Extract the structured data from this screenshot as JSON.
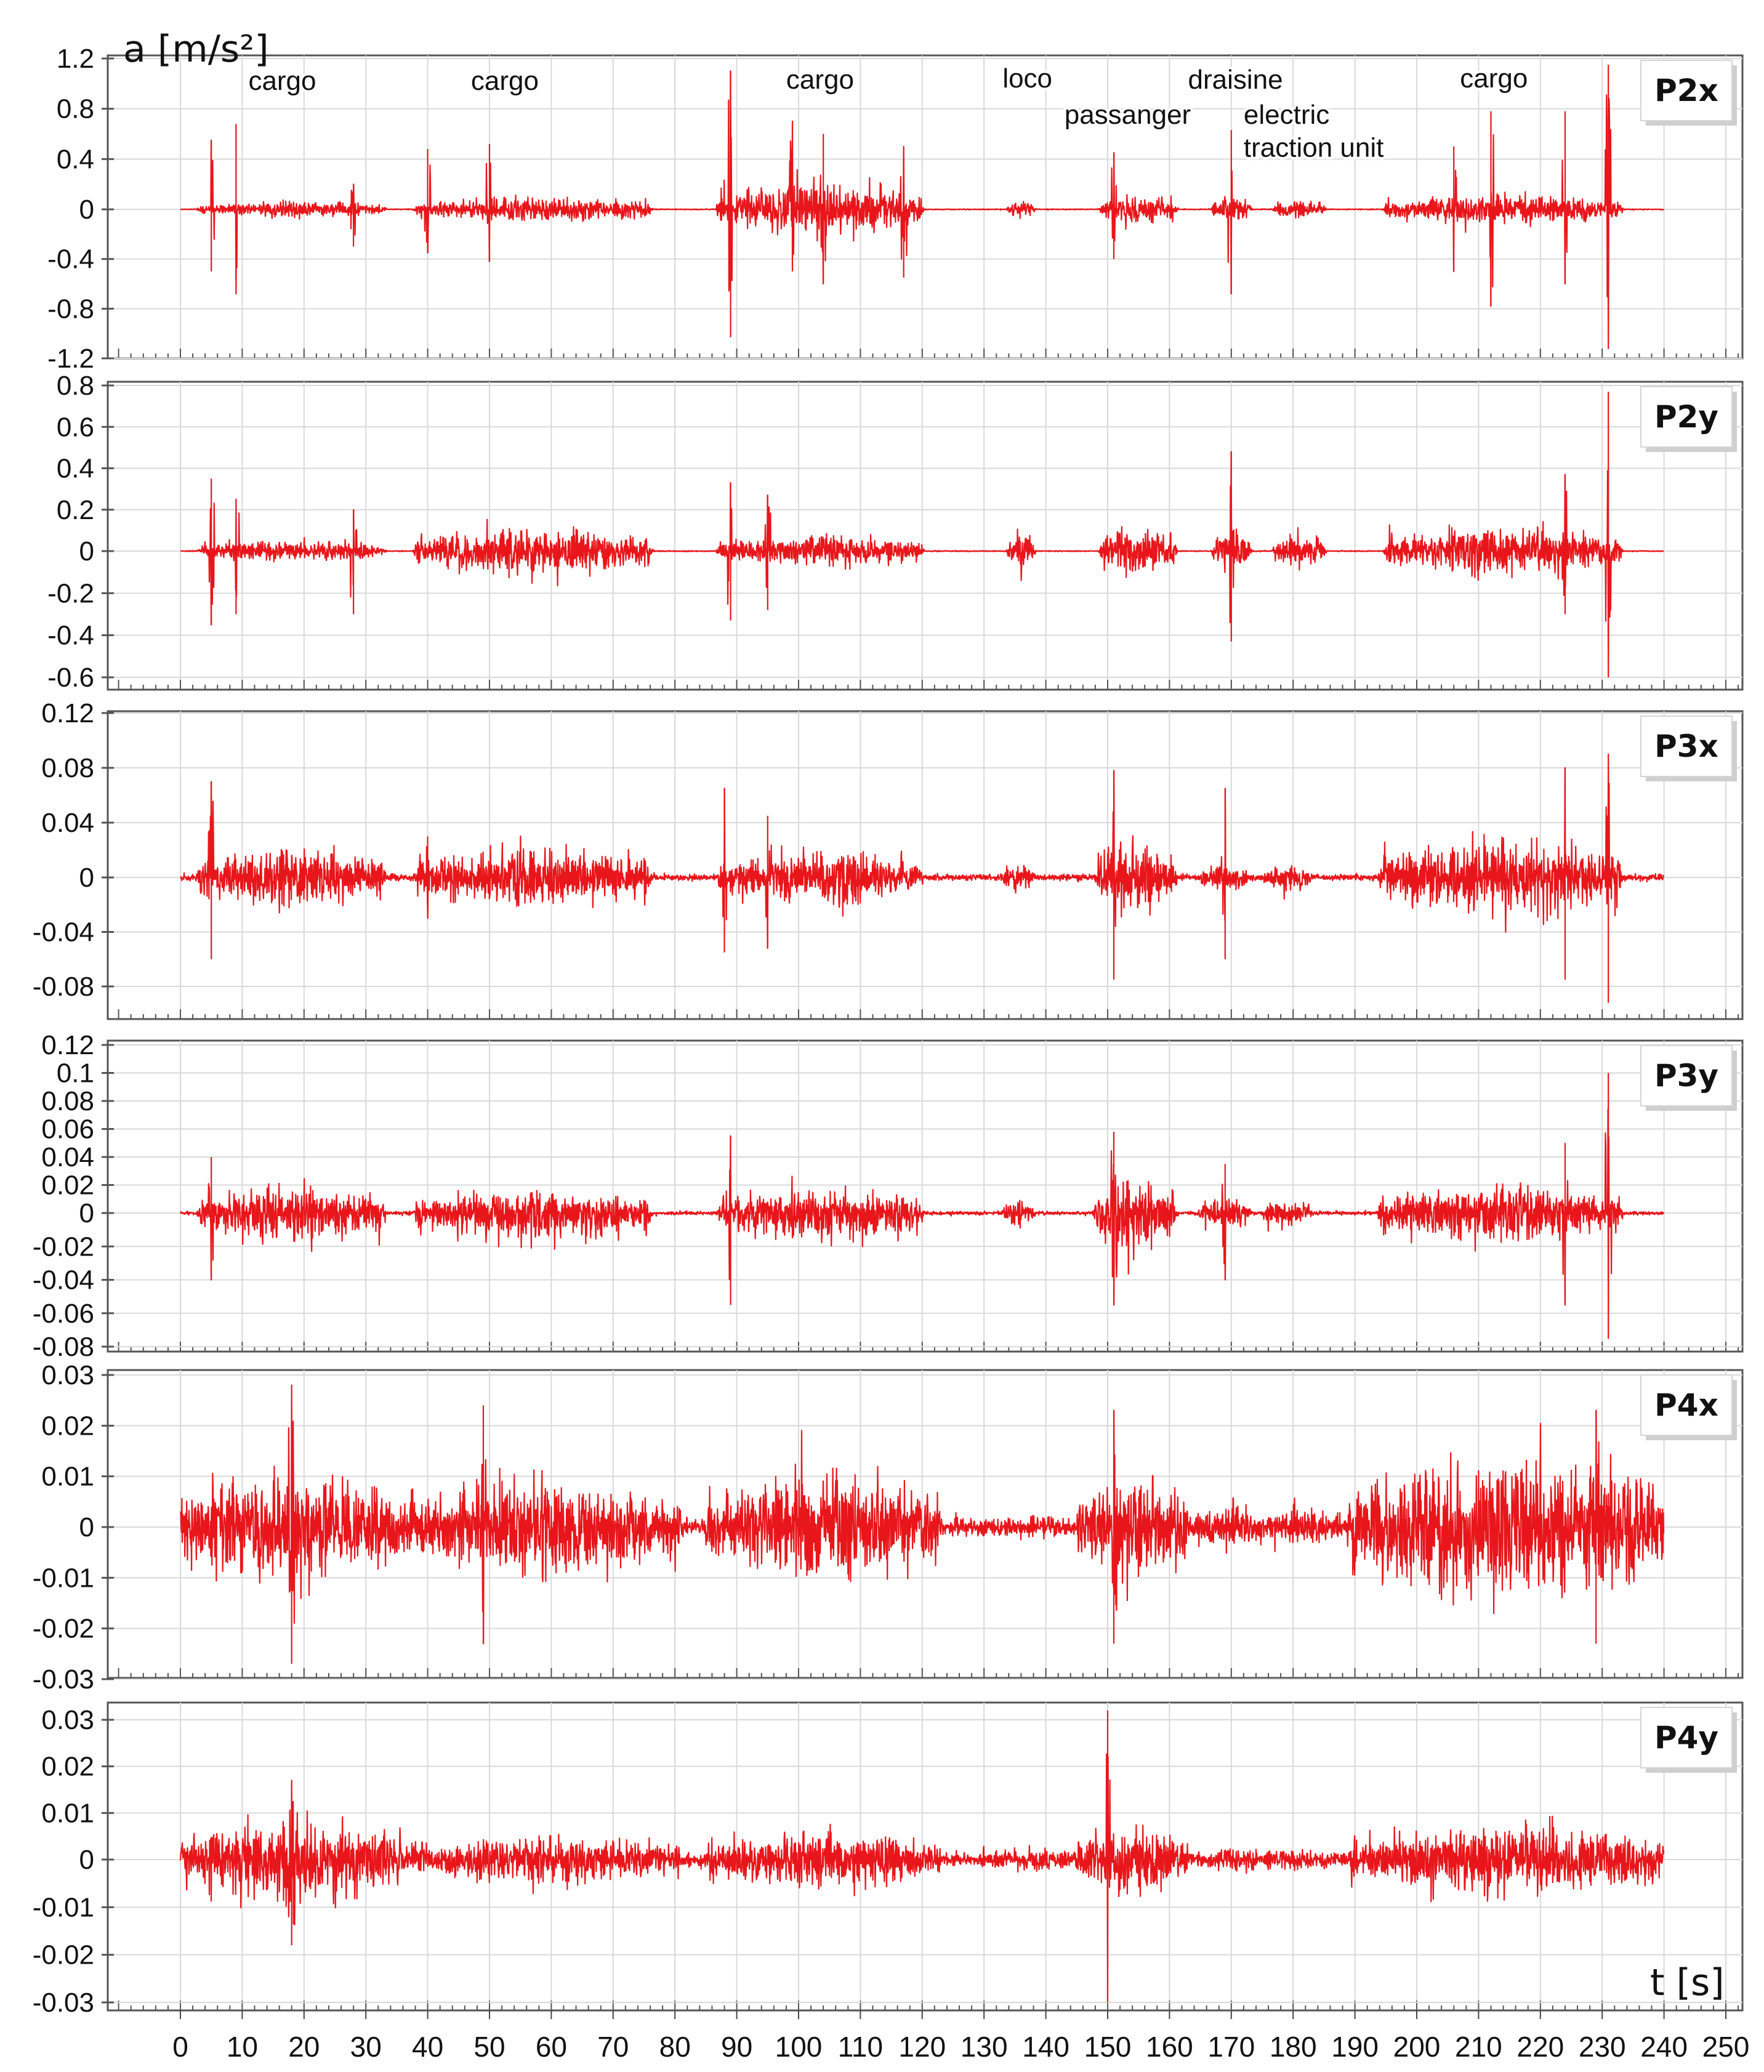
{
  "chart_data": {
    "type": "line",
    "y_axis_label": "a [m/s²]",
    "x_axis_label": "t [s]",
    "x_ticks": [
      0,
      10,
      20,
      30,
      40,
      50,
      60,
      70,
      80,
      90,
      100,
      110,
      120,
      130,
      140,
      150,
      160,
      170,
      180,
      190,
      200,
      210,
      220,
      230,
      240,
      250
    ],
    "xlim": [
      0,
      250
    ],
    "grid": true,
    "colors": {
      "series": "#e8161b",
      "grid": "#d9d9d9",
      "frame": "#555555"
    },
    "events": [
      {
        "label": "cargo",
        "start": 4,
        "end": 32
      },
      {
        "label": "cargo",
        "start": 39,
        "end": 75
      },
      {
        "label": "cargo",
        "start": 88,
        "end": 119
      },
      {
        "label": "loco",
        "start": 135,
        "end": 137
      },
      {
        "label": "passanger",
        "start": 151,
        "end": 160
      },
      {
        "label": "draisine",
        "start": 168,
        "end": 172
      },
      {
        "label": "electric",
        "start": 178,
        "end": 184
      },
      {
        "label": "traction unit",
        "start": 178,
        "end": 184
      },
      {
        "label": "cargo",
        "start": 196,
        "end": 232
      }
    ],
    "panels": [
      {
        "name": "P2x",
        "ylim": [
          -1.2,
          1.2
        ],
        "y_ticks": [
          1.2,
          0.8,
          0.4,
          0,
          -0.4,
          -0.8,
          -1.2
        ],
        "y_tick_labels": [
          "1.2",
          "0.8",
          "0.4",
          "0",
          "-0.4",
          "-0.8",
          "-1.2"
        ],
        "baseline": 0.003,
        "segments": [
          [
            4,
            32,
            0.05
          ],
          [
            39,
            75,
            0.08
          ],
          [
            88,
            119,
            0.17
          ],
          [
            135,
            137,
            0.07
          ],
          [
            150,
            160,
            0.1
          ],
          [
            168,
            172,
            0.1
          ],
          [
            178,
            184,
            0.06
          ],
          [
            196,
            232,
            0.1
          ]
        ],
        "peaks": [
          [
            5,
            0.55,
            -0.5
          ],
          [
            9,
            0.68,
            -0.68
          ],
          [
            28,
            0.2,
            -0.3
          ],
          [
            40,
            0.48,
            -0.35
          ],
          [
            50,
            0.52,
            -0.42
          ],
          [
            89,
            1.1,
            -1.03
          ],
          [
            99,
            0.7,
            -0.5
          ],
          [
            104,
            0.6,
            -0.6
          ],
          [
            117,
            0.5,
            -0.55
          ],
          [
            151,
            0.45,
            -0.4
          ],
          [
            170,
            0.63,
            -0.68
          ],
          [
            206,
            0.5,
            -0.5
          ],
          [
            212,
            0.78,
            -0.78
          ],
          [
            224,
            0.78,
            -0.6
          ],
          [
            231,
            1.15,
            -1.12
          ]
        ],
        "annotations": [
          {
            "text": "cargo",
            "x": 11,
            "y": 0.95
          },
          {
            "text": "cargo",
            "x": 47,
            "y": 0.95
          },
          {
            "text": "cargo",
            "x": 98,
            "y": 0.96
          },
          {
            "text": "loco",
            "x": 133,
            "y": 0.97
          },
          {
            "text": "draisine",
            "x": 163,
            "y": 0.96
          },
          {
            "text": "passanger",
            "x": 143,
            "y": 0.68
          },
          {
            "text": "electric",
            "x": 172,
            "y": 0.68
          },
          {
            "text": "traction unit",
            "x": 172,
            "y": 0.42
          },
          {
            "text": "cargo",
            "x": 207,
            "y": 0.97
          }
        ]
      },
      {
        "name": "P2y",
        "ylim": [
          -0.62,
          0.82
        ],
        "y_ticks": [
          0.8,
          0.6,
          0.4,
          0.2,
          0,
          -0.2,
          -0.4,
          -0.6
        ],
        "y_tick_labels": [
          "0.8",
          "0.6",
          "0.4",
          "0.2",
          "0",
          "-0.2",
          "-0.4",
          "-0.6"
        ],
        "baseline": 0.002,
        "segments": [
          [
            4,
            32,
            0.04
          ],
          [
            39,
            75,
            0.09
          ],
          [
            88,
            119,
            0.06
          ],
          [
            135,
            137,
            0.1
          ],
          [
            150,
            160,
            0.1
          ],
          [
            168,
            172,
            0.1
          ],
          [
            178,
            184,
            0.07
          ],
          [
            196,
            232,
            0.09
          ]
        ],
        "peaks": [
          [
            5,
            0.35,
            -0.35
          ],
          [
            9,
            0.25,
            -0.3
          ],
          [
            28,
            0.2,
            -0.3
          ],
          [
            89,
            0.33,
            -0.33
          ],
          [
            95,
            0.27,
            -0.28
          ],
          [
            170,
            0.48,
            -0.43
          ],
          [
            224,
            0.37,
            -0.3
          ],
          [
            231,
            0.77,
            -0.6
          ]
        ],
        "annotations": []
      },
      {
        "name": "P3x",
        "ylim": [
          -0.105,
          0.12
        ],
        "y_ticks": [
          0.12,
          0.08,
          0.04,
          0,
          -0.04,
          -0.08
        ],
        "y_tick_labels": [
          "0.12",
          "0.08",
          "0.04",
          "0",
          "-0.04",
          "-0.08"
        ],
        "baseline": 0.002,
        "segments": [
          [
            4,
            32,
            0.018
          ],
          [
            39,
            75,
            0.018
          ],
          [
            88,
            119,
            0.016
          ],
          [
            134,
            137,
            0.01
          ],
          [
            149,
            160,
            0.02
          ],
          [
            166,
            172,
            0.01
          ],
          [
            176,
            182,
            0.008
          ],
          [
            195,
            232,
            0.022
          ]
        ],
        "peaks": [
          [
            5,
            0.07,
            -0.06
          ],
          [
            40,
            0.03,
            -0.03
          ],
          [
            88,
            0.065,
            -0.055
          ],
          [
            95,
            0.045,
            -0.052
          ],
          [
            151,
            0.078,
            -0.075
          ],
          [
            169,
            0.065,
            -0.06
          ],
          [
            224,
            0.08,
            -0.075
          ],
          [
            231,
            0.09,
            -0.092
          ]
        ],
        "annotations": []
      },
      {
        "name": "P3y",
        "ylim": [
          -0.08,
          0.12
        ],
        "y_ticks": [
          0.12,
          0.1,
          0.08,
          0.06,
          0.04,
          0.02,
          0,
          -0.02,
          -0.04,
          -0.06,
          -0.08
        ],
        "y_tick_labels": [
          "0.12",
          "0.1",
          "0.08",
          "0.06",
          "0.04",
          "0.02",
          "0",
          "-0.02",
          "-0.04",
          "-0.06",
          "-0.08"
        ],
        "baseline": 0.001,
        "segments": [
          [
            4,
            32,
            0.015
          ],
          [
            39,
            75,
            0.014
          ],
          [
            88,
            119,
            0.014
          ],
          [
            134,
            137,
            0.008
          ],
          [
            149,
            160,
            0.02
          ],
          [
            166,
            172,
            0.01
          ],
          [
            176,
            182,
            0.008
          ],
          [
            195,
            232,
            0.015
          ]
        ],
        "peaks": [
          [
            5,
            0.04,
            -0.04
          ],
          [
            89,
            0.055,
            -0.055
          ],
          [
            151,
            0.058,
            -0.055
          ],
          [
            169,
            0.035,
            -0.04
          ],
          [
            224,
            0.05,
            -0.055
          ],
          [
            231,
            0.1,
            -0.075
          ]
        ],
        "annotations": []
      },
      {
        "name": "P4x",
        "ylim": [
          -0.03,
          0.03
        ],
        "y_ticks": [
          0.03,
          0.02,
          0.01,
          0,
          -0.01,
          -0.02,
          -0.03
        ],
        "y_tick_labels": [
          "0.03",
          "0.02",
          "0.01",
          "0",
          "-0.01",
          "-0.02",
          "-0.03"
        ],
        "baseline": 0.0015,
        "segments": [
          [
            0,
            34,
            0.009
          ],
          [
            35,
            80,
            0.008
          ],
          [
            86,
            122,
            0.009
          ],
          [
            130,
            145,
            0.002
          ],
          [
            146,
            162,
            0.008
          ],
          [
            165,
            174,
            0.004
          ],
          [
            175,
            187,
            0.003
          ],
          [
            190,
            240,
            0.012
          ]
        ],
        "peaks": [
          [
            18,
            0.028,
            -0.027
          ],
          [
            49,
            0.024,
            -0.023
          ],
          [
            151,
            0.023,
            -0.023
          ],
          [
            229,
            0.023,
            -0.023
          ]
        ],
        "annotations": []
      },
      {
        "name": "P4y",
        "ylim": [
          -0.032,
          0.032
        ],
        "y_ticks": [
          0.03,
          0.02,
          0.01,
          0,
          -0.01,
          -0.02,
          -0.03
        ],
        "y_tick_labels": [
          "0.03",
          "0.02",
          "0.01",
          "0",
          "-0.01",
          "-0.02",
          "-0.03"
        ],
        "baseline": 0.0012,
        "segments": [
          [
            0,
            35,
            0.007
          ],
          [
            35,
            80,
            0.004
          ],
          [
            86,
            122,
            0.005
          ],
          [
            130,
            145,
            0.002
          ],
          [
            146,
            162,
            0.006
          ],
          [
            165,
            176,
            0.002
          ],
          [
            176,
            188,
            0.002
          ],
          [
            190,
            240,
            0.006
          ]
        ],
        "peaks": [
          [
            18,
            0.017,
            -0.018
          ],
          [
            150,
            0.032,
            -0.03
          ]
        ],
        "annotations": []
      }
    ]
  }
}
